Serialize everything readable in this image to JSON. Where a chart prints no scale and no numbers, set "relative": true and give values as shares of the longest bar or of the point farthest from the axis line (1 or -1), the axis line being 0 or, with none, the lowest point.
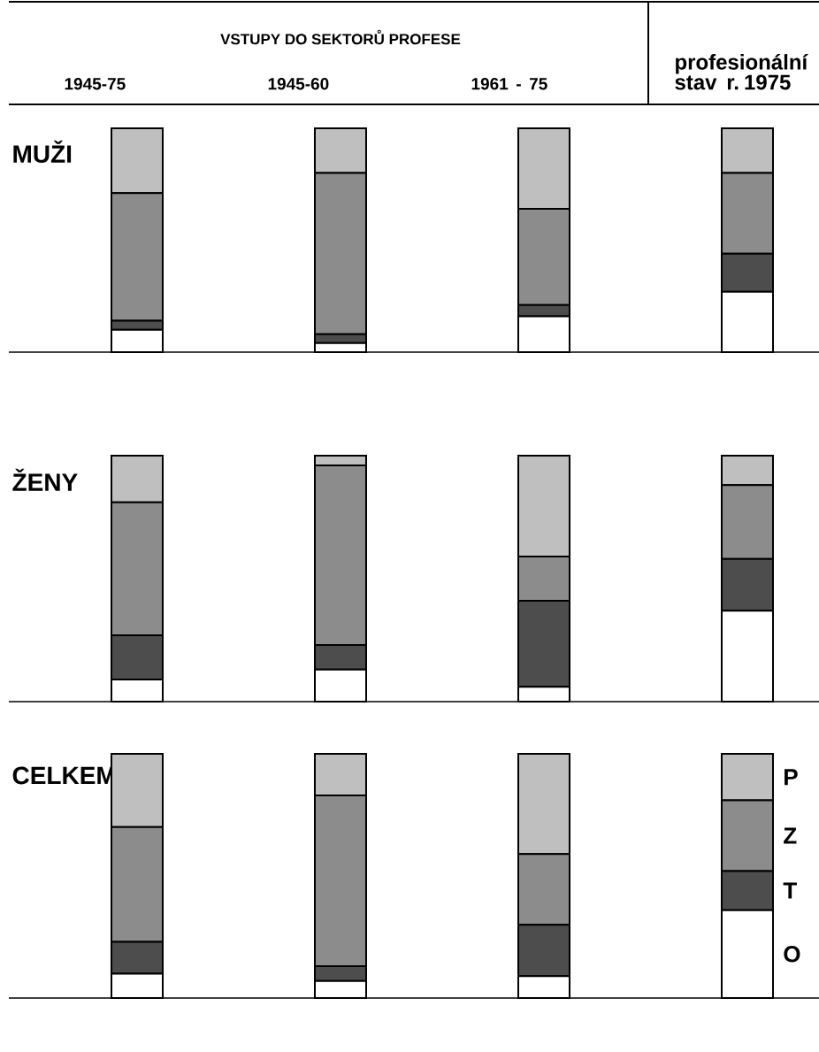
{
  "chart_data": [
    {
      "type": "bar",
      "stacked": true,
      "relative": true,
      "title": "MUŽI",
      "annotations": [
        "VSTUPY DO SEKTORŮ PROFESE"
      ],
      "tick_labels": "x",
      "categories": [
        "1945-75",
        "1945-60",
        "1961 - 75",
        "profesionální stav r. 1975"
      ],
      "series": [
        {
          "color": "#ffffff",
          "values": [
            0.1,
            0.04,
            0.16,
            0.27
          ]
        },
        {
          "color": "#4d4d4d",
          "values": [
            0.04,
            0.04,
            0.05,
            0.17
          ]
        },
        {
          "color": "#8c8c8c",
          "values": [
            0.57,
            0.72,
            0.43,
            0.36
          ]
        },
        {
          "color": "#bfbfbf",
          "values": [
            0.29,
            0.2,
            0.36,
            0.2
          ]
        }
      ]
    },
    {
      "type": "bar",
      "stacked": true,
      "relative": true,
      "title": "ŽENY",
      "categories": [
        null,
        null,
        null,
        null
      ],
      "series": [
        {
          "color": "#ffffff",
          "values": [
            0.09,
            0.13,
            0.06,
            0.37
          ]
        },
        {
          "color": "#4d4d4d",
          "values": [
            0.18,
            0.1,
            0.35,
            0.21
          ]
        },
        {
          "color": "#8c8c8c",
          "values": [
            0.54,
            0.73,
            0.18,
            0.3
          ]
        },
        {
          "color": "#bfbfbf",
          "values": [
            0.19,
            0.04,
            0.41,
            0.12
          ]
        }
      ]
    },
    {
      "type": "bar",
      "stacked": true,
      "relative": true,
      "title": "CELKEM",
      "legend": "right",
      "categories": [
        null,
        null,
        null,
        null
      ],
      "series": [
        {
          "name": "O",
          "color": "#ffffff",
          "values": [
            0.1,
            0.07,
            0.09,
            0.36
          ]
        },
        {
          "name": "T",
          "color": "#4d4d4d",
          "values": [
            0.13,
            0.06,
            0.21,
            0.16
          ]
        },
        {
          "name": "Z",
          "color": "#8c8c8c",
          "values": [
            0.47,
            0.7,
            0.29,
            0.29
          ]
        },
        {
          "name": "P",
          "color": "#bfbfbf",
          "values": [
            0.3,
            0.17,
            0.41,
            0.19
          ]
        }
      ]
    }
  ]
}
